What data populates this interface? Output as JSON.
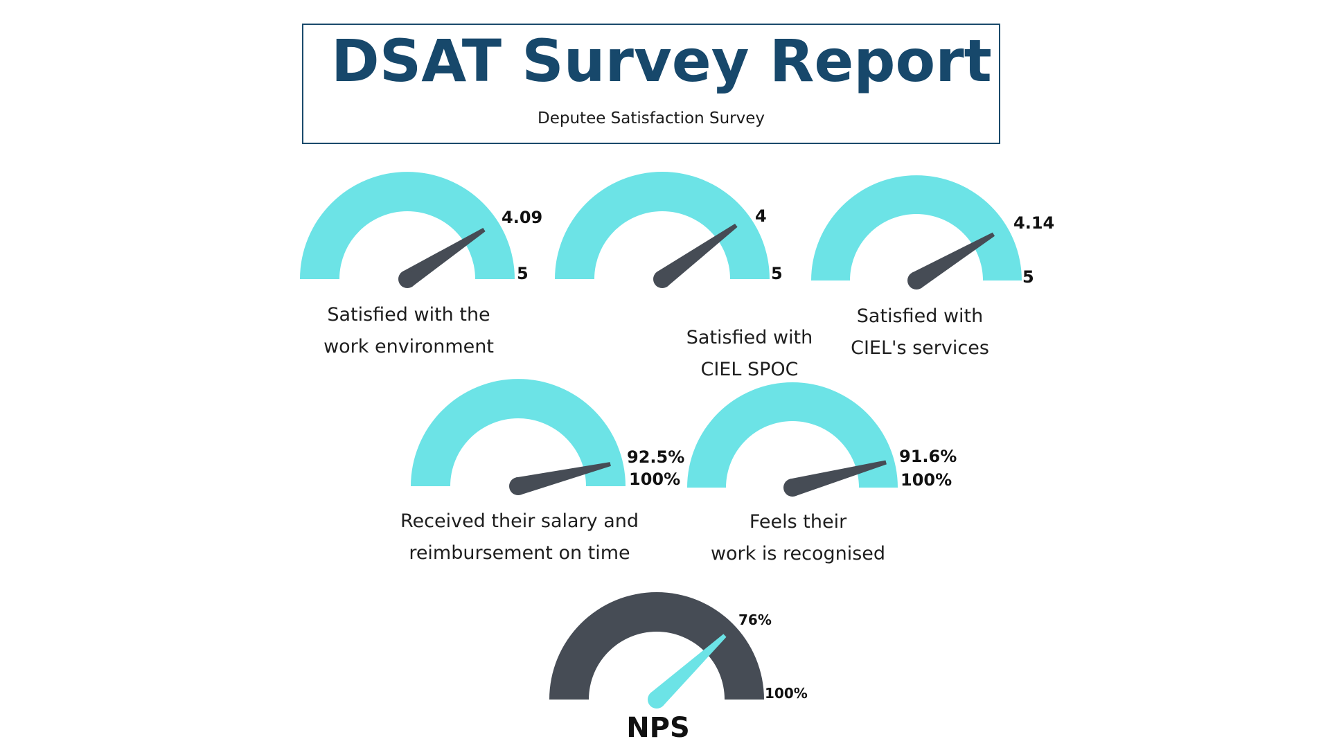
{
  "header": {
    "title": "DSAT Survey Report",
    "subtitle": "Deputee Satisfaction Survey"
  },
  "colors": {
    "title": "#17486b",
    "arc_cyan": "#6ce3e6",
    "needle_dark": "#464c55",
    "nps_arc": "#464c55",
    "nps_needle": "#6ce3e6"
  },
  "chart_data": [
    {
      "type": "gauge",
      "id": "work-environment",
      "value": 4.09,
      "max": 5,
      "value_label": "4.09",
      "max_label": "5",
      "caption_lines": [
        "Satisfied with the",
        "work environment"
      ]
    },
    {
      "type": "gauge",
      "id": "ciel-spoc",
      "value": 4,
      "max": 5,
      "value_label": "4",
      "max_label": "5",
      "caption_lines": [
        "Satisfied with",
        "CIEL SPOC"
      ]
    },
    {
      "type": "gauge",
      "id": "ciel-services",
      "value": 4.14,
      "max": 5,
      "value_label": "4.14",
      "max_label": "5",
      "caption_lines": [
        "Satisfied with",
        "CIEL's services"
      ]
    },
    {
      "type": "gauge",
      "id": "salary-on-time",
      "value": 92.5,
      "max": 100,
      "value_label": "92.5%",
      "max_label": "100%",
      "caption_lines": [
        "Received their salary and",
        "reimbursement on time"
      ]
    },
    {
      "type": "gauge",
      "id": "work-recognised",
      "value": 91.6,
      "max": 100,
      "value_label": "91.6%",
      "max_label": "100%",
      "caption_lines": [
        "Feels their",
        "work is recognised"
      ]
    },
    {
      "type": "gauge",
      "id": "nps",
      "value": 76,
      "max": 100,
      "value_label": "76%",
      "max_label": "100%",
      "title": "NPS"
    }
  ]
}
